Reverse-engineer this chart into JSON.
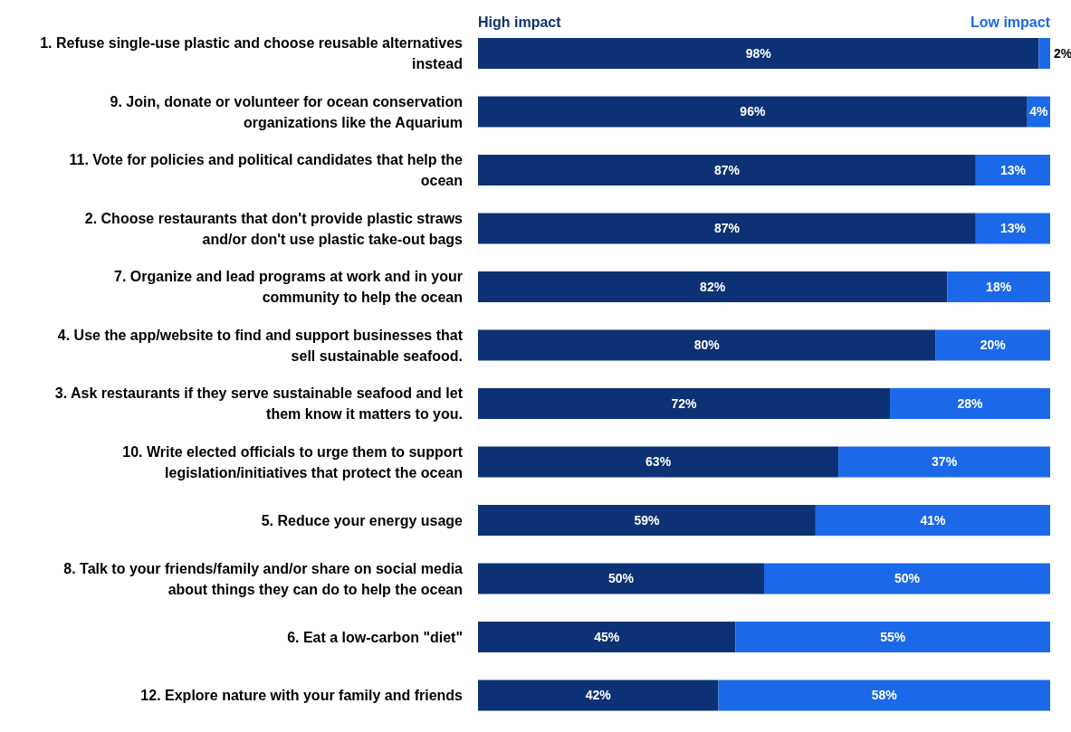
{
  "chart_data": {
    "type": "bar",
    "orientation": "horizontal",
    "stacked": true,
    "legend": "top",
    "tick_labels": "y",
    "xlim": [
      0,
      100
    ],
    "categories": [
      "1. Refuse single-use plastic and choose reusable alternatives instead",
      "9. Join, donate or volunteer for ocean conservation organizations like the Aquarium",
      "11. Vote for policies and political candidates that help the ocean",
      "2. Choose restaurants that don't provide plastic straws and/or don't use plastic take-out bags",
      "7. Organize and lead programs at work and in your community to help the ocean",
      "4. Use the app/website to find and support businesses that sell sustainable seafood.",
      "3. Ask restaurants if they serve sustainable seafood and let them know it matters to you.",
      "10. Write elected officials to urge them to support legislation/initiatives that protect the ocean",
      "5. Reduce your energy usage",
      "8. Talk to your friends/family and/or share on social media about things they can do to help the ocean",
      "6. Eat a low-carbon \"diet\"",
      "12. Explore nature with your family and friends"
    ],
    "series": [
      {
        "name": "High impact",
        "color": "#0c3275",
        "values": [
          98,
          96,
          87,
          87,
          82,
          80,
          72,
          63,
          59,
          50,
          45,
          42
        ],
        "value_labels": [
          "98%",
          "96%",
          "87%",
          "87%",
          "82%",
          "80%",
          "72%",
          "63%",
          "59%",
          "50%",
          "45%",
          "42%"
        ]
      },
      {
        "name": "Low impact",
        "color": "#1b69e8",
        "values": [
          2,
          4,
          13,
          13,
          18,
          20,
          28,
          37,
          41,
          50,
          55,
          58
        ],
        "value_labels": [
          "2%",
          "4%",
          "13%",
          "13%",
          "18%",
          "20%",
          "28%",
          "37%",
          "41%",
          "50%",
          "55%",
          "58%"
        ]
      }
    ]
  }
}
